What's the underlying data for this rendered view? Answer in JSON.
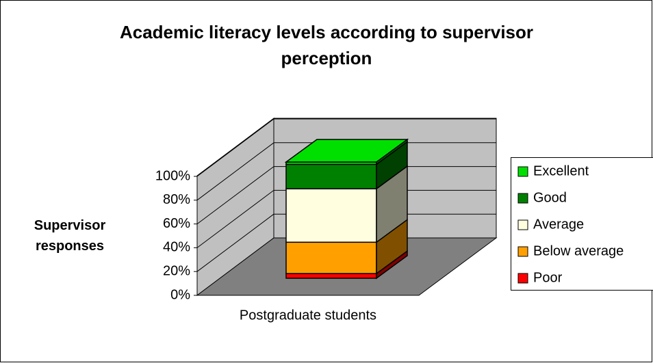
{
  "chart_data": {
    "type": "bar3d_stacked",
    "title": "Academic literacy levels according to supervisor perception",
    "y_label": "Supervisor responses",
    "categories": [
      "Postgraduate students"
    ],
    "series": [
      {
        "name": "Poor",
        "color": "#ff0000",
        "values": [
          4
        ]
      },
      {
        "name": "Below average",
        "color": "#ffa000",
        "values": [
          27
        ]
      },
      {
        "name": "Average",
        "color": "#ffffe0",
        "values": [
          46
        ]
      },
      {
        "name": "Good",
        "color": "#008000",
        "values": [
          21
        ]
      },
      {
        "name": "Excellent",
        "color": "#00e000",
        "values": [
          2
        ]
      }
    ],
    "ylim": [
      0,
      100
    ],
    "yticks": [
      {
        "value": 0,
        "label": "0%"
      },
      {
        "value": 20,
        "label": "20%"
      },
      {
        "value": 40,
        "label": "40%"
      },
      {
        "value": 60,
        "label": "60%"
      },
      {
        "value": 80,
        "label": "80%"
      },
      {
        "value": 100,
        "label": "100%"
      }
    ],
    "grid": true,
    "legend": "right"
  }
}
